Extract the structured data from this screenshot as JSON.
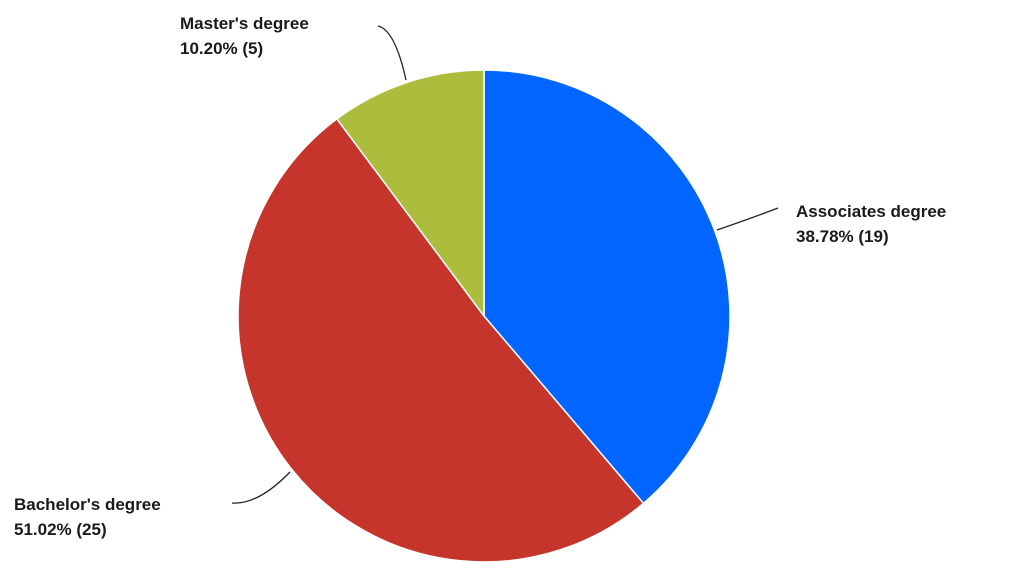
{
  "chart_data": {
    "type": "pie",
    "title": "",
    "start_angle_deg": 0,
    "direction": "clockwise",
    "slices": [
      {
        "label": "Associates degree",
        "value": 19,
        "percent_text": "38.78% (19)",
        "color": "#0066ff"
      },
      {
        "label": "Bachelor's degree",
        "value": 25,
        "percent_text": "51.02% (25)",
        "color": "#c5352b"
      },
      {
        "label": "Master's degree",
        "value": 5,
        "percent_text": "10.20% (5)",
        "color": "#abbd3b"
      }
    ]
  }
}
